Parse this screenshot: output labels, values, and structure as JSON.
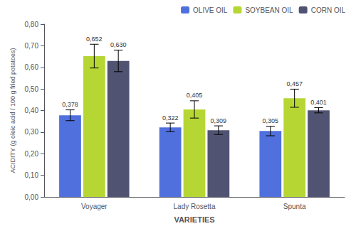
{
  "chart_data": {
    "type": "bar",
    "xlabel": "VARIETIES",
    "ylabel": "ACIDITY (g oleic acid / 100 g fried potatoes)",
    "categories": [
      "Voyager",
      "Lady Rosetta",
      "Spunta"
    ],
    "series": [
      {
        "name": "OLIVE OIL",
        "values": [
          0.378,
          0.322,
          0.305
        ],
        "errors": [
          0.025,
          0.02,
          0.022
        ],
        "value_labels": [
          "0,378",
          "0,322",
          "0,305"
        ]
      },
      {
        "name": "SOYBEAN OIL",
        "values": [
          0.652,
          0.405,
          0.457
        ],
        "errors": [
          0.055,
          0.04,
          0.042
        ],
        "value_labels": [
          "0,652",
          "0,405",
          "0,457"
        ]
      },
      {
        "name": "CORN OIL",
        "values": [
          0.63,
          0.309,
          0.401
        ],
        "errors": [
          0.05,
          0.02,
          0.012
        ],
        "value_labels": [
          "0,630",
          "0,309",
          "0,401"
        ]
      }
    ],
    "ylim": [
      0.0,
      0.8
    ],
    "yticks": [
      {
        "value": 0.0,
        "label": "0,00"
      },
      {
        "value": 0.1,
        "label": "0,10"
      },
      {
        "value": 0.2,
        "label": "0,20"
      },
      {
        "value": 0.3,
        "label": "0,30"
      },
      {
        "value": 0.4,
        "label": "0,40"
      },
      {
        "value": 0.5,
        "label": "0,50"
      },
      {
        "value": 0.6,
        "label": "0,60"
      },
      {
        "value": 0.7,
        "label": "0,70"
      },
      {
        "value": 0.8,
        "label": "0,80"
      }
    ],
    "grid": false,
    "legend": "upper right",
    "data_labels": true
  }
}
